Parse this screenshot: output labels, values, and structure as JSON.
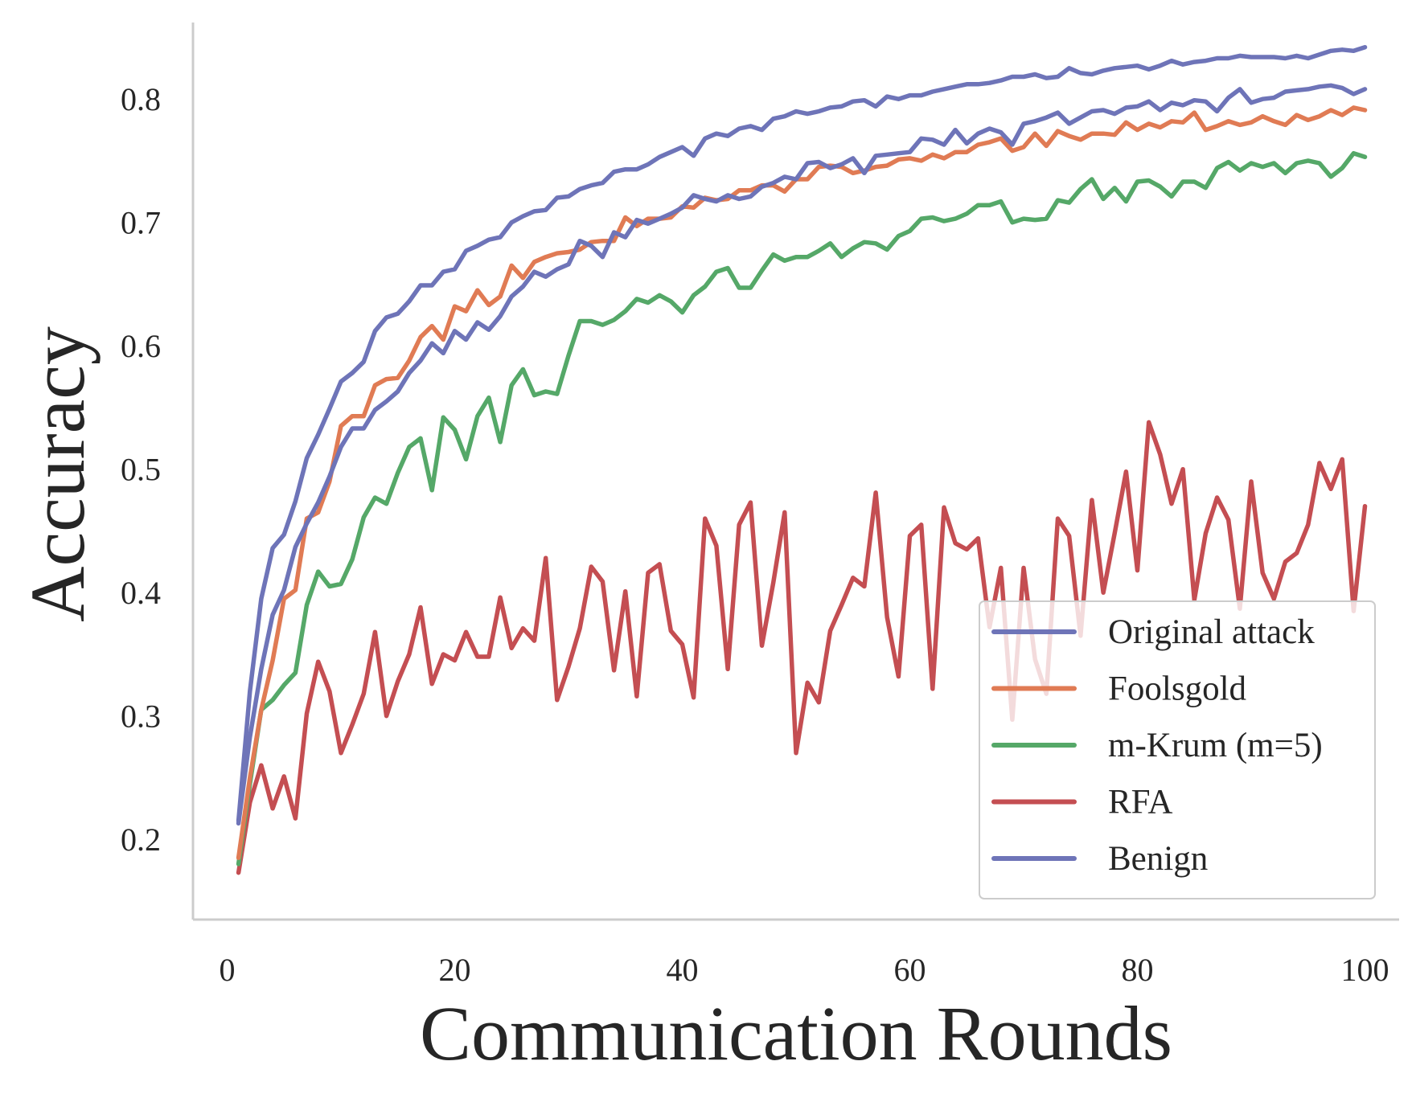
{
  "chart_data": {
    "type": "line",
    "xlabel": "Communication Rounds",
    "ylabel": "Accuracy",
    "xlim": [
      -3,
      103
    ],
    "ylim": [
      0.135,
      0.862
    ],
    "xticks": [
      0,
      20,
      40,
      60,
      80,
      100
    ],
    "yticks": [
      0.2,
      0.3,
      0.4,
      0.5,
      0.6,
      0.7,
      0.8
    ],
    "grid": false,
    "legend_position": "lower-right",
    "x": [
      1,
      2,
      3,
      4,
      5,
      6,
      7,
      8,
      9,
      10,
      11,
      12,
      13,
      14,
      15,
      16,
      17,
      18,
      19,
      20,
      21,
      22,
      23,
      24,
      25,
      26,
      27,
      28,
      29,
      30,
      31,
      32,
      33,
      34,
      35,
      36,
      37,
      38,
      39,
      40,
      41,
      42,
      43,
      44,
      45,
      46,
      47,
      48,
      49,
      50,
      51,
      52,
      53,
      54,
      55,
      56,
      57,
      58,
      59,
      60,
      61,
      62,
      63,
      64,
      65,
      66,
      67,
      68,
      69,
      70,
      71,
      72,
      73,
      74,
      75,
      76,
      77,
      78,
      79,
      80,
      81,
      82,
      83,
      84,
      85,
      86,
      87,
      88,
      89,
      90,
      91,
      92,
      93,
      94,
      95,
      96,
      97,
      98,
      99,
      100
    ],
    "series": [
      {
        "name": "Original attack",
        "color": "#6e74b8",
        "values": [
          0.213,
          0.283,
          0.338,
          0.382,
          0.402,
          0.437,
          0.456,
          0.473,
          0.494,
          0.518,
          0.533,
          0.533,
          0.548,
          0.555,
          0.563,
          0.578,
          0.588,
          0.602,
          0.594,
          0.612,
          0.605,
          0.619,
          0.613,
          0.624,
          0.64,
          0.648,
          0.66,
          0.656,
          0.662,
          0.666,
          0.685,
          0.681,
          0.672,
          0.692,
          0.688,
          0.702,
          0.699,
          0.703,
          0.707,
          0.712,
          0.722,
          0.719,
          0.717,
          0.722,
          0.719,
          0.721,
          0.729,
          0.732,
          0.737,
          0.735,
          0.748,
          0.749,
          0.744,
          0.747,
          0.752,
          0.74,
          0.754,
          0.755,
          0.756,
          0.757,
          0.768,
          0.767,
          0.763,
          0.775,
          0.764,
          0.772,
          0.776,
          0.773,
          0.763,
          0.78,
          0.782,
          0.785,
          0.789,
          0.78,
          0.785,
          0.79,
          0.791,
          0.788,
          0.793,
          0.794,
          0.798,
          0.791,
          0.797,
          0.795,
          0.799,
          0.798,
          0.79,
          0.801,
          0.808,
          0.797,
          0.8,
          0.801,
          0.806,
          0.807,
          0.808,
          0.81,
          0.811,
          0.809,
          0.804,
          0.808
        ]
      },
      {
        "name": "Foolsgold",
        "color": "#e07b54",
        "values": [
          0.185,
          0.25,
          0.305,
          0.345,
          0.395,
          0.402,
          0.46,
          0.465,
          0.49,
          0.535,
          0.543,
          0.543,
          0.568,
          0.573,
          0.574,
          0.588,
          0.607,
          0.616,
          0.605,
          0.632,
          0.628,
          0.645,
          0.633,
          0.64,
          0.665,
          0.655,
          0.668,
          0.672,
          0.675,
          0.676,
          0.678,
          0.684,
          0.685,
          0.685,
          0.704,
          0.697,
          0.703,
          0.703,
          0.704,
          0.713,
          0.712,
          0.72,
          0.718,
          0.719,
          0.726,
          0.726,
          0.73,
          0.73,
          0.725,
          0.735,
          0.735,
          0.745,
          0.746,
          0.745,
          0.74,
          0.742,
          0.745,
          0.746,
          0.751,
          0.752,
          0.75,
          0.755,
          0.752,
          0.757,
          0.757,
          0.763,
          0.765,
          0.768,
          0.758,
          0.761,
          0.772,
          0.762,
          0.774,
          0.77,
          0.767,
          0.772,
          0.772,
          0.771,
          0.781,
          0.775,
          0.78,
          0.777,
          0.782,
          0.781,
          0.789,
          0.775,
          0.778,
          0.782,
          0.779,
          0.781,
          0.786,
          0.782,
          0.779,
          0.787,
          0.783,
          0.786,
          0.791,
          0.787,
          0.793,
          0.791
        ]
      },
      {
        "name": "m-Krum (m=5)",
        "color": "#55a868",
        "values": [
          0.18,
          0.245,
          0.305,
          0.313,
          0.325,
          0.335,
          0.39,
          0.417,
          0.405,
          0.407,
          0.427,
          0.461,
          0.477,
          0.472,
          0.497,
          0.518,
          0.525,
          0.483,
          0.542,
          0.532,
          0.508,
          0.543,
          0.558,
          0.522,
          0.568,
          0.581,
          0.56,
          0.563,
          0.561,
          0.592,
          0.62,
          0.62,
          0.617,
          0.621,
          0.628,
          0.638,
          0.635,
          0.641,
          0.636,
          0.627,
          0.641,
          0.648,
          0.66,
          0.663,
          0.647,
          0.647,
          0.661,
          0.674,
          0.669,
          0.672,
          0.672,
          0.677,
          0.683,
          0.672,
          0.679,
          0.684,
          0.683,
          0.678,
          0.689,
          0.693,
          0.703,
          0.704,
          0.701,
          0.703,
          0.707,
          0.714,
          0.714,
          0.717,
          0.7,
          0.703,
          0.702,
          0.703,
          0.718,
          0.716,
          0.727,
          0.735,
          0.719,
          0.728,
          0.717,
          0.733,
          0.734,
          0.729,
          0.721,
          0.733,
          0.733,
          0.728,
          0.744,
          0.749,
          0.742,
          0.748,
          0.745,
          0.748,
          0.74,
          0.748,
          0.75,
          0.748,
          0.737,
          0.744,
          0.756,
          0.753
        ]
      },
      {
        "name": "RFA",
        "color": "#c44e52",
        "values": [
          0.173,
          0.23,
          0.26,
          0.225,
          0.251,
          0.217,
          0.302,
          0.344,
          0.32,
          0.27,
          0.293,
          0.318,
          0.368,
          0.3,
          0.328,
          0.35,
          0.388,
          0.326,
          0.35,
          0.345,
          0.368,
          0.348,
          0.348,
          0.396,
          0.355,
          0.371,
          0.361,
          0.428,
          0.313,
          0.34,
          0.371,
          0.421,
          0.409,
          0.337,
          0.401,
          0.316,
          0.416,
          0.423,
          0.369,
          0.358,
          0.315,
          0.46,
          0.438,
          0.338,
          0.455,
          0.473,
          0.357,
          0.408,
          0.465,
          0.27,
          0.327,
          0.311,
          0.369,
          0.39,
          0.412,
          0.405,
          0.481,
          0.38,
          0.332,
          0.446,
          0.455,
          0.322,
          0.469,
          0.44,
          0.435,
          0.444,
          0.372,
          0.42,
          0.297,
          0.42,
          0.346,
          0.318,
          0.46,
          0.446,
          0.365,
          0.475,
          0.4,
          0.448,
          0.498,
          0.418,
          0.538,
          0.512,
          0.472,
          0.5,
          0.394,
          0.448,
          0.477,
          0.459,
          0.387,
          0.49,
          0.416,
          0.395,
          0.425,
          0.432,
          0.455,
          0.505,
          0.484,
          0.508,
          0.385,
          0.47
        ]
      },
      {
        "name": "Benign",
        "color": "#6e74b8",
        "values": [
          0.215,
          0.32,
          0.395,
          0.436,
          0.447,
          0.474,
          0.509,
          0.528,
          0.549,
          0.571,
          0.578,
          0.587,
          0.612,
          0.623,
          0.626,
          0.636,
          0.649,
          0.649,
          0.66,
          0.662,
          0.677,
          0.681,
          0.686,
          0.688,
          0.7,
          0.705,
          0.709,
          0.71,
          0.72,
          0.721,
          0.727,
          0.73,
          0.732,
          0.741,
          0.743,
          0.743,
          0.747,
          0.753,
          0.757,
          0.761,
          0.754,
          0.768,
          0.772,
          0.77,
          0.776,
          0.778,
          0.775,
          0.784,
          0.786,
          0.79,
          0.788,
          0.79,
          0.793,
          0.794,
          0.798,
          0.799,
          0.794,
          0.802,
          0.8,
          0.803,
          0.803,
          0.806,
          0.808,
          0.81,
          0.812,
          0.812,
          0.813,
          0.815,
          0.818,
          0.818,
          0.82,
          0.817,
          0.818,
          0.825,
          0.821,
          0.82,
          0.823,
          0.825,
          0.826,
          0.827,
          0.824,
          0.827,
          0.831,
          0.828,
          0.83,
          0.831,
          0.833,
          0.833,
          0.835,
          0.834,
          0.834,
          0.834,
          0.833,
          0.835,
          0.833,
          0.836,
          0.839,
          0.84,
          0.839,
          0.842
        ]
      }
    ]
  }
}
